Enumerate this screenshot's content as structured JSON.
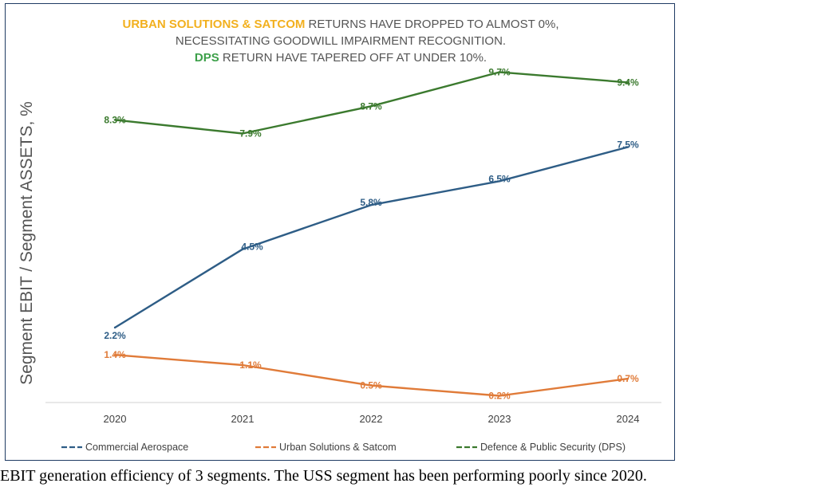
{
  "chart_data": {
    "type": "line",
    "title_lines": [
      {
        "highlight": "URBAN SOLUTIONS & SATCOM",
        "highlight_color": "#f2b01e",
        "rest": " RETURNS HAVE DROPPED TO ALMOST 0%,"
      },
      {
        "highlight": "",
        "highlight_color": "",
        "rest": "NECESSITATING GOODWILL IMPAIRMENT RECOGNITION."
      },
      {
        "highlight": "DPS",
        "highlight_color": "#3da04a",
        "rest": " RETURN HAVE TAPERED OFF AT UNDER 10%."
      }
    ],
    "ylabel": "Segment  EBIT / Segment  ASSETS, %",
    "xlabel": "",
    "categories": [
      "2020",
      "2021",
      "2022",
      "2023",
      "2024"
    ],
    "ylim": [
      0,
      11
    ],
    "grid": false,
    "legend_position": "bottom",
    "series": [
      {
        "name": "Commercial Aerospace",
        "color": "#2e5d86",
        "values": [
          2.2,
          4.5,
          5.8,
          6.5,
          7.5
        ],
        "labels": [
          "2.2%",
          "4.5%",
          "5.8%",
          "6.5%",
          "7.5%"
        ]
      },
      {
        "name": "Urban Solutions & Satcom",
        "color": "#e07b39",
        "values": [
          1.4,
          1.1,
          0.5,
          0.2,
          0.7
        ],
        "labels": [
          "1.4%",
          "1.1%",
          "0.5%",
          "0.2%",
          "0.7%"
        ]
      },
      {
        "name": "Defence & Public Security (DPS)",
        "color": "#3b7a2e",
        "values": [
          8.3,
          7.9,
          8.7,
          9.7,
          9.4
        ],
        "labels": [
          "8.3%",
          "7.9%",
          "8.7%",
          "9.7%",
          "9.4%"
        ]
      }
    ]
  },
  "caption": "EBIT generation efficiency of 3 segments. The USS segment has been performing poorly since 2020."
}
